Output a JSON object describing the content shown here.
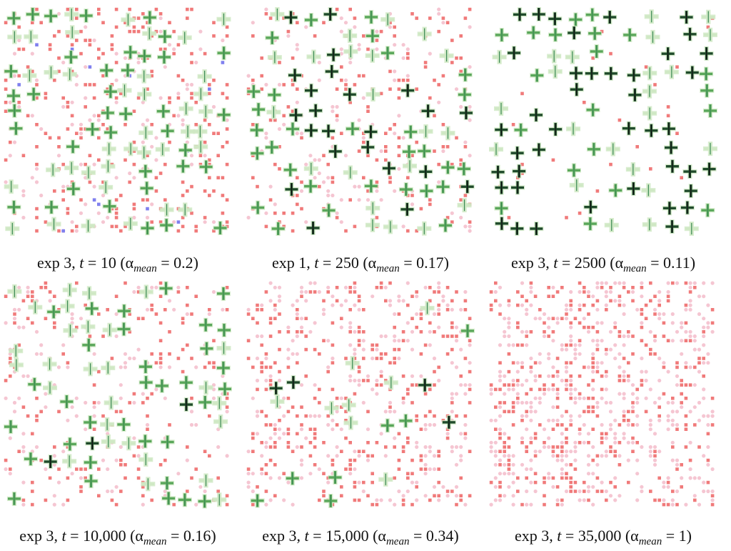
{
  "panels": [
    {
      "exp": "exp 3",
      "t_label": "t",
      "t_value": "10",
      "alpha_symbol": "α",
      "alpha_sub": "mean",
      "alpha_value": "0.2",
      "seed": 11,
      "green_density": 0.55,
      "dark_ratio": 0.0,
      "blue_count": 14,
      "red_density": 0.09,
      "pink_density": 0.04
    },
    {
      "exp": "exp 1",
      "t_label": "t",
      "t_value": "250",
      "alpha_symbol": "α",
      "alpha_sub": "mean",
      "alpha_value": "0.17",
      "seed": 23,
      "green_density": 0.55,
      "dark_ratio": 0.35,
      "blue_count": 0,
      "red_density": 0.07,
      "pink_density": 0.05
    },
    {
      "exp": "exp 3",
      "t_label": "t",
      "t_value": "2500",
      "alpha_symbol": "α",
      "alpha_sub": "mean",
      "alpha_value": "0.11",
      "seed": 37,
      "green_density": 0.6,
      "dark_ratio": 0.45,
      "blue_count": 0,
      "red_density": 0.01,
      "pink_density": 0.0
    },
    {
      "exp": "exp 3",
      "t_label": "t",
      "t_value": "10,000",
      "alpha_symbol": "α",
      "alpha_sub": "mean",
      "alpha_value": "0.16",
      "seed": 41,
      "green_density": 0.5,
      "dark_ratio": 0.1,
      "blue_count": 0,
      "red_density": 0.06,
      "pink_density": 0.05
    },
    {
      "exp": "exp 3",
      "t_label": "t",
      "t_value": "15,000",
      "alpha_symbol": "α",
      "alpha_sub": "mean",
      "alpha_value": "0.34",
      "seed": 53,
      "green_density": 0.12,
      "dark_ratio": 0.2,
      "blue_count": 0,
      "red_density": 0.12,
      "pink_density": 0.1
    },
    {
      "exp": "exp 3",
      "t_label": "t",
      "t_value": "35,000",
      "alpha_symbol": "α",
      "alpha_sub": "mean",
      "alpha_value": "1",
      "seed": 67,
      "green_density": 0.0,
      "dark_ratio": 0.0,
      "blue_count": 0,
      "red_density": 0.13,
      "pink_density": 0.16
    }
  ],
  "colors": {
    "red": "#f07a7a",
    "pink": "#f5c6d2",
    "blue": "#8080ee",
    "green_light": "#cfe8c4",
    "green_mid": "#5aa75a",
    "green_dark": "#1f4a2a",
    "green_line": "#3c8a55"
  }
}
